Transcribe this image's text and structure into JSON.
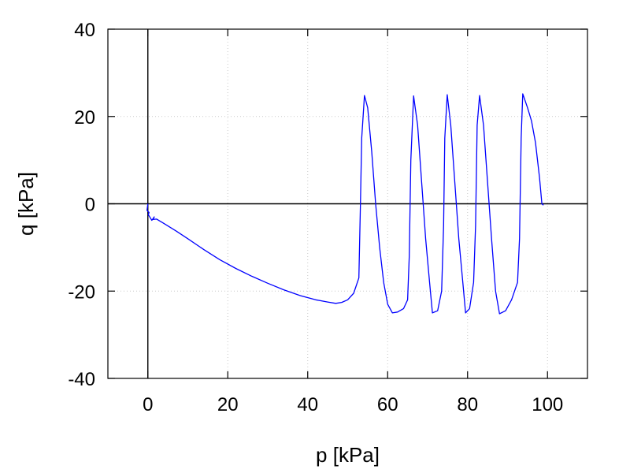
{
  "chart_data": {
    "type": "line",
    "xlabel": "p [kPa]",
    "ylabel": "q [kPa]",
    "xlim": [
      -10,
      110
    ],
    "ylim": [
      -40,
      40
    ],
    "xticks": [
      0,
      20,
      40,
      60,
      80,
      100
    ],
    "yticks": [
      -40,
      -20,
      0,
      20,
      40
    ],
    "grid": true,
    "zero_lines": true,
    "series": [
      {
        "color": "#0000ff",
        "x": [
          0,
          -0.2,
          0.3,
          0.1,
          0.6,
          1.0,
          1.6,
          1.3,
          2.2,
          4,
          7,
          10,
          14,
          18,
          22,
          26,
          30,
          34,
          38,
          42,
          45,
          47,
          48.5,
          50,
          51.5,
          52.8,
          53.2,
          53.5,
          54.2,
          55,
          56,
          57,
          58,
          59,
          60,
          61.2,
          62.5,
          64,
          65,
          65.4,
          65.8,
          66.5,
          67.5,
          68.5,
          69.5,
          70.5,
          71.2,
          72.5,
          73.5,
          74,
          74.3,
          74.9,
          75.8,
          76.8,
          77.8,
          78.8,
          79.5,
          80.5,
          81.5,
          82,
          82.4,
          83,
          84,
          85,
          86,
          87,
          88,
          89.5,
          91,
          92.5,
          93,
          93.4,
          93.8,
          95,
          96,
          97,
          98,
          98.6,
          98.8,
          99
        ],
        "y": [
          0,
          -1.5,
          -2.0,
          -2.5,
          -3.2,
          -3.8,
          -3.0,
          -3.6,
          -3.5,
          -4.5,
          -6.2,
          -8.0,
          -10.5,
          -12.8,
          -14.8,
          -16.6,
          -18.2,
          -19.7,
          -21.0,
          -22.0,
          -22.5,
          -22.8,
          -22.6,
          -22.0,
          -20.5,
          -17.0,
          0,
          15,
          24.8,
          22,
          12,
          0,
          -10,
          -18,
          -23,
          -25,
          -24.8,
          -24,
          -22,
          -12,
          10,
          24.7,
          18,
          5,
          -8,
          -18,
          -25,
          -24.5,
          -20,
          -5,
          15,
          25.0,
          18,
          5,
          -8,
          -18,
          -25,
          -24,
          -18,
          -5,
          18,
          24.8,
          18,
          5,
          -8,
          -20,
          -25.2,
          -24.5,
          -22,
          -18,
          -8,
          15,
          25.2,
          22,
          19,
          14,
          6,
          0,
          -0.2,
          -0.3
        ]
      }
    ]
  }
}
